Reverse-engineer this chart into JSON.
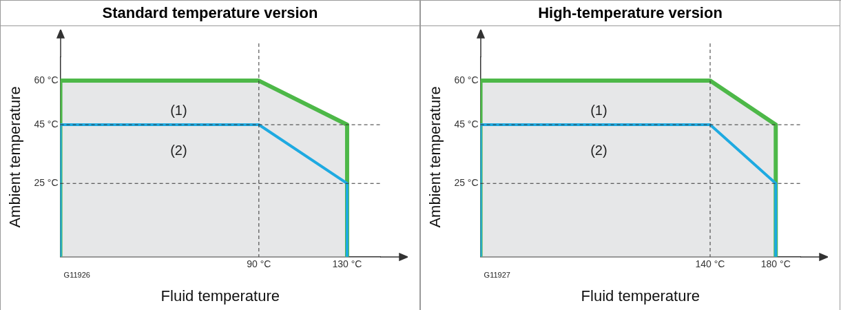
{
  "chart_data": [
    {
      "type": "line",
      "title": "Standard temperature version",
      "xlabel": "Fluid temperature",
      "ylabel": "Ambient temperature",
      "marker": "none",
      "grid": false,
      "xlim": [
        0,
        145
      ],
      "xticks": [
        {
          "value": 90,
          "label": "90 °C"
        },
        {
          "value": 130,
          "label": "130 °C"
        }
      ],
      "ylim": [
        0,
        68
      ],
      "yticks": [
        {
          "value": 25,
          "label": "25 °C"
        },
        {
          "value": 45,
          "label": "45 °C"
        },
        {
          "value": 60,
          "label": "60 °C"
        }
      ],
      "series": [
        {
          "type": "area",
          "color": "#4db848",
          "x": [
            0,
            0,
            90,
            130,
            130
          ],
          "values": [
            0,
            60,
            60,
            45,
            0
          ]
        },
        {
          "color": "#1eaae1",
          "x": [
            0,
            0,
            90,
            130,
            130
          ],
          "values": [
            0,
            45,
            45,
            25,
            0
          ]
        }
      ],
      "ref_lines": [
        {
          "axis": "x",
          "value": 90,
          "color": "#333333",
          "line_style": "dashed"
        },
        {
          "axis": "y",
          "value": 45,
          "color": "#333333",
          "line_style": "dashed"
        },
        {
          "axis": "y",
          "value": 25,
          "color": "#333333",
          "line_style": "dashed"
        }
      ],
      "annotations": [
        "(1)",
        "(2)",
        "G11926"
      ]
    },
    {
      "type": "line",
      "title": "High-temperature version",
      "xlabel": "Fluid temperature",
      "ylabel": "Ambient temperature",
      "marker": "none",
      "grid": false,
      "xlim": [
        0,
        195
      ],
      "xticks": [
        {
          "value": 140,
          "label": "140 °C"
        },
        {
          "value": 180,
          "label": "180 °C"
        }
      ],
      "ylim": [
        0,
        68
      ],
      "yticks": [
        {
          "value": 25,
          "label": "25 °C"
        },
        {
          "value": 45,
          "label": "45 °C"
        },
        {
          "value": 60,
          "label": "60 °C"
        }
      ],
      "series": [
        {
          "type": "area",
          "color": "#4db848",
          "x": [
            0,
            0,
            140,
            180,
            180
          ],
          "values": [
            0,
            60,
            60,
            45,
            0
          ]
        },
        {
          "color": "#1eaae1",
          "x": [
            0,
            0,
            140,
            180,
            180
          ],
          "values": [
            0,
            45,
            45,
            25,
            0
          ]
        }
      ],
      "ref_lines": [
        {
          "axis": "x",
          "value": 140,
          "color": "#333333",
          "line_style": "dashed"
        },
        {
          "axis": "y",
          "value": 45,
          "color": "#333333",
          "line_style": "dashed"
        },
        {
          "axis": "y",
          "value": 25,
          "color": "#333333",
          "line_style": "dashed"
        }
      ],
      "annotations": [
        "(1)",
        "(2)",
        "G11927"
      ]
    }
  ]
}
